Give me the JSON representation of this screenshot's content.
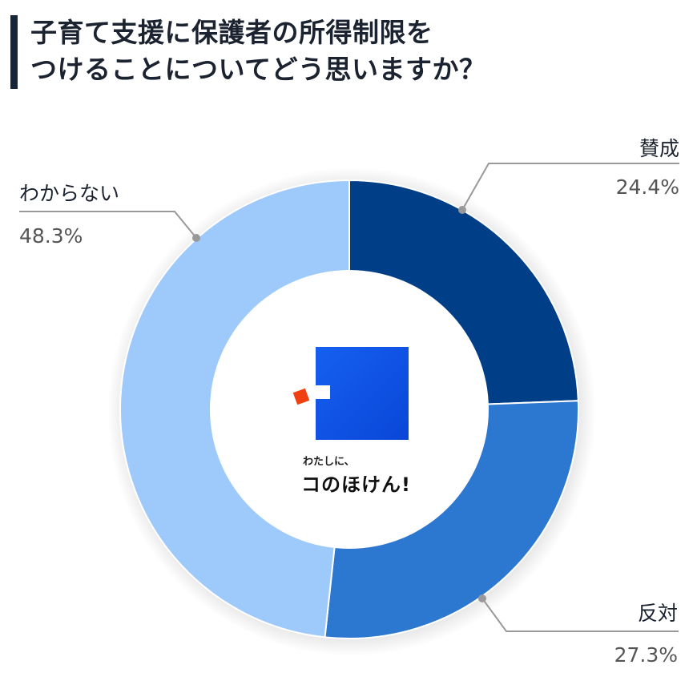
{
  "title": {
    "line1": "子育て支援に保護者の所得制限を",
    "line2": "つけることについてどう思いますか？"
  },
  "logo": {
    "tagline": "わたしに、",
    "name": "コのほけん!",
    "colors": {
      "square": "#0a4fe0",
      "accent": "#f04010"
    }
  },
  "labels": {
    "agree": {
      "name": "賛成",
      "value": "24.4%"
    },
    "disagree": {
      "name": "反対",
      "value": "27.3%"
    },
    "unknown": {
      "name": "わからない",
      "value": "48.3%"
    }
  },
  "chart_data": {
    "type": "pie",
    "subtype": "donut",
    "title": "子育て支援に保護者の所得制限をつけることについてどう思いますか？",
    "categories": [
      "賛成",
      "反対",
      "わからない"
    ],
    "values": [
      24.4,
      27.3,
      48.3
    ],
    "unit": "%",
    "colors": [
      "#003f87",
      "#2c77cf",
      "#9dc9fb"
    ],
    "start_angle": "12 o'clock, clockwise",
    "legend": "callout labels with leader lines"
  }
}
